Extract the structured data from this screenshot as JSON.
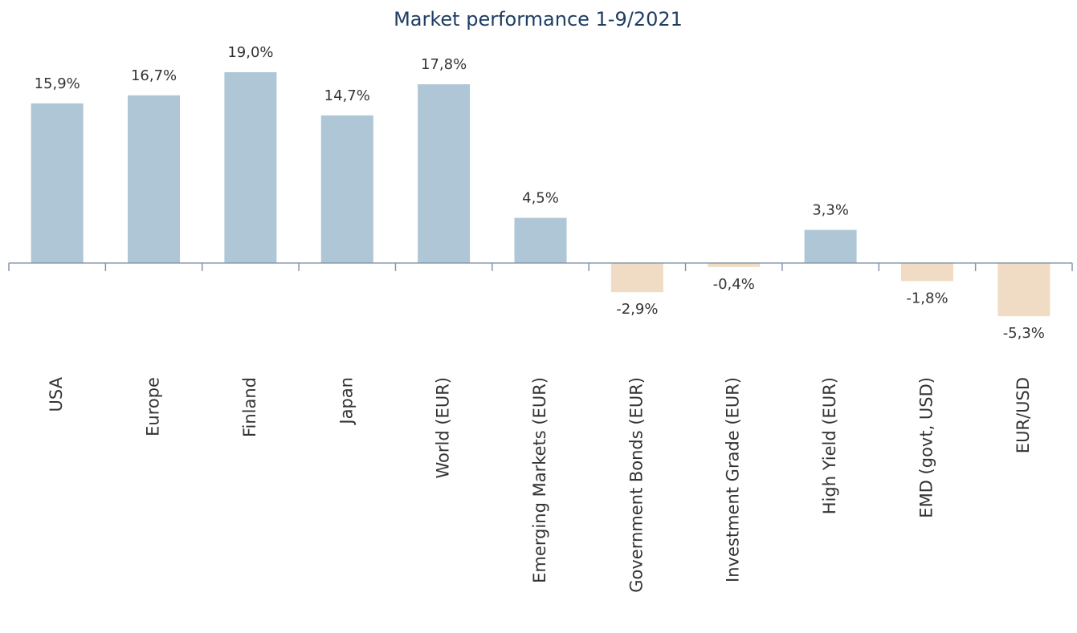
{
  "chart_data": {
    "type": "bar",
    "title": "Market performance 1-9/2021",
    "categories": [
      "USA",
      "Europe",
      "Finland",
      "Japan",
      "World (EUR)",
      "Emerging Markets (EUR)",
      "Government Bonds (EUR)",
      "Investment Grade (EUR)",
      "High Yield (EUR)",
      "EMD (govt, USD)",
      "EUR/USD"
    ],
    "values": [
      15.9,
      16.7,
      19.0,
      14.7,
      17.8,
      4.5,
      -2.9,
      -0.4,
      3.3,
      -1.8,
      -5.3
    ],
    "value_labels": [
      "15,9%",
      "16,7%",
      "19,0%",
      "14,7%",
      "17,8%",
      "4,5%",
      "-2,9%",
      "-0,4%",
      "3,3%",
      "-1,8%",
      "-5,3%"
    ],
    "color": "#aec6d5",
    "negative_color": "#f0dcc4",
    "ylim": [
      -8,
      21
    ]
  }
}
